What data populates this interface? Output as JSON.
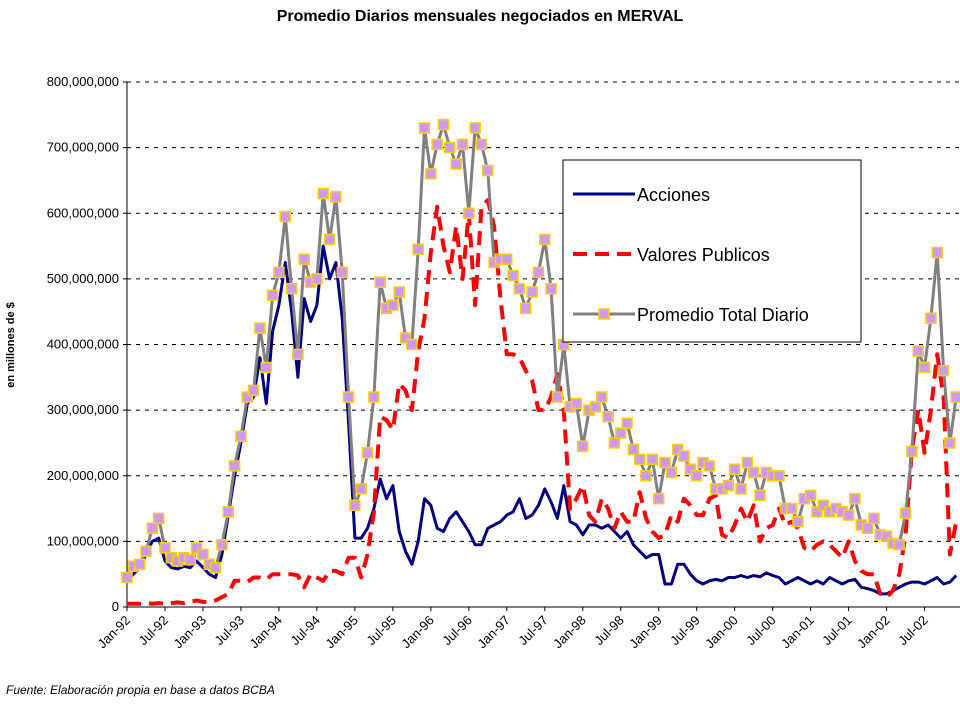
{
  "chart_data": {
    "type": "line",
    "title": "Promedio Diarios mensuales negociados en MERVAL",
    "y_label": "en millones de $",
    "source": "Fuente:  Elaboración propia en base a datos BCBA",
    "categories": [
      "Jan-92",
      null,
      null,
      null,
      null,
      null,
      "Jul-92",
      null,
      null,
      null,
      null,
      null,
      "Jan-93",
      null,
      null,
      null,
      null,
      null,
      "Jul-93",
      null,
      null,
      null,
      null,
      null,
      "Jan-94",
      null,
      null,
      null,
      null,
      null,
      "Jul-94",
      null,
      null,
      null,
      null,
      null,
      "Jan-95",
      null,
      null,
      null,
      null,
      null,
      "Jul-95",
      null,
      null,
      null,
      null,
      null,
      "Jan-96",
      null,
      null,
      null,
      null,
      null,
      "Jul-96",
      null,
      null,
      null,
      null,
      null,
      "Jan-97",
      null,
      null,
      null,
      null,
      null,
      "Jul-97",
      null,
      null,
      null,
      null,
      null,
      "Jan-98",
      null,
      null,
      null,
      null,
      null,
      "Jul-98",
      null,
      null,
      null,
      null,
      null,
      "Jan-99",
      null,
      null,
      null,
      null,
      null,
      "Jul-99",
      null,
      null,
      null,
      null,
      null,
      "Jan-00",
      null,
      null,
      null,
      null,
      null,
      "Jul-00",
      null,
      null,
      null,
      null,
      null,
      "Jan-01",
      null,
      null,
      null,
      null,
      null,
      "Jul-01",
      null,
      null,
      null,
      null,
      null,
      "Jan-02",
      null,
      null,
      null,
      null,
      null,
      "Jul-02",
      null,
      null,
      null,
      null,
      null
    ],
    "series": [
      {
        "name": "Acciones",
        "color": "#000080",
        "dash": false,
        "values": [
          40000000.0,
          50000000.0,
          60000000.0,
          80000000.0,
          100000000.0,
          105000000.0,
          70000000.0,
          60000000.0,
          58000000.0,
          62000000.0,
          60000000.0,
          70000000.0,
          60000000.0,
          50000000.0,
          45000000.0,
          80000000.0,
          140000000.0,
          200000000.0,
          250000000.0,
          310000000.0,
          320000000.0,
          380000000.0,
          310000000.0,
          420000000.0,
          460000000.0,
          525000000.0,
          450000000.0,
          350000000.0,
          470000000.0,
          435000000.0,
          460000000.0,
          550000000.0,
          500000000.0,
          525000000.0,
          440000000.0,
          280000000.0,
          105000000.0,
          105000000.0,
          120000000.0,
          150000000.0,
          195000000.0,
          165000000.0,
          185000000.0,
          115000000.0,
          85000000.0,
          65000000.0,
          100000000.0,
          165000000.0,
          155000000.0,
          120000000.0,
          115000000.0,
          135000000.0,
          145000000.0,
          130000000.0,
          115000000.0,
          95000000.0,
          95000000.0,
          120000000.0,
          125000000.0,
          130000000.0,
          140000000.0,
          145000000.0,
          165000000.0,
          135000000.0,
          140000000.0,
          155000000.0,
          180000000.0,
          160000000.0,
          135000000.0,
          185000000.0,
          130000000.0,
          125000000.0,
          110000000.0,
          125000000.0,
          125000000.0,
          120000000.0,
          125000000.0,
          115000000.0,
          105000000.0,
          115000000.0,
          95000000.0,
          85000000.0,
          75000000.0,
          80000000.0,
          80000000.0,
          35000000.0,
          35000000.0,
          65000000.0,
          65000000.0,
          50000000.0,
          40000000.0,
          35000000.0,
          40000000.0,
          42000000.0,
          40000000.0,
          45000000.0,
          45000000.0,
          48000000.0,
          45000000.0,
          48000000.0,
          46000000.0,
          52000000.0,
          48000000.0,
          45000000.0,
          35000000.0,
          40000000.0,
          45000000.0,
          40000000.0,
          35000000.0,
          40000000.0,
          35000000.0,
          45000000.0,
          40000000.0,
          35000000.0,
          40000000.0,
          42000000.0,
          30000000.0,
          28000000.0,
          25000000.0,
          20000000.0,
          20000000.0,
          25000000.0,
          30000000.0,
          35000000.0,
          38000000.0,
          38000000.0,
          35000000.0,
          40000000.0,
          45000000.0,
          35000000.0,
          38000000.0,
          48000000.0
        ]
      },
      {
        "name": "Valores Publicos",
        "color": "#ff0000",
        "dash": true,
        "values": [
          5000000.0,
          5000000.0,
          5000000.0,
          6000000.0,
          5000000.0,
          6000000.0,
          5000000.0,
          6000000.0,
          7000000.0,
          6000000.0,
          8000000.0,
          10000000.0,
          8000000.0,
          7000000.0,
          10000000.0,
          15000000.0,
          20000000.0,
          40000000.0,
          40000000.0,
          38000000.0,
          45000000.0,
          45000000.0,
          42000000.0,
          50000000.0,
          50000000.0,
          50000000.0,
          50000000.0,
          48000000.0,
          30000000.0,
          50000000.0,
          45000000.0,
          40000000.0,
          55000000.0,
          55000000.0,
          50000000.0,
          75000000.0,
          75000000.0,
          45000000.0,
          80000000.0,
          145000000.0,
          290000000.0,
          285000000.0,
          270000000.0,
          340000000.0,
          330000000.0,
          300000000.0,
          390000000.0,
          440000000.0,
          540000000.0,
          610000000.0,
          550000000.0,
          510000000.0,
          580000000.0,
          500000000.0,
          600000000.0,
          460000000.0,
          610000000.0,
          620000000.0,
          580000000.0,
          470000000.0,
          385000000.0,
          385000000.0,
          380000000.0,
          360000000.0,
          345000000.0,
          300000000.0,
          300000000.0,
          320000000.0,
          355000000.0,
          300000000.0,
          150000000.0,
          165000000.0,
          185000000.0,
          140000000.0,
          130000000.0,
          165000000.0,
          150000000.0,
          120000000.0,
          145000000.0,
          130000000.0,
          130000000.0,
          175000000.0,
          135000000.0,
          115000000.0,
          105000000.0,
          110000000.0,
          140000000.0,
          130000000.0,
          165000000.0,
          155000000.0,
          140000000.0,
          140000000.0,
          165000000.0,
          170000000.0,
          110000000.0,
          105000000.0,
          125000000.0,
          150000000.0,
          130000000.0,
          155000000.0,
          100000000.0,
          120000000.0,
          125000000.0,
          150000000.0,
          125000000.0,
          130000000.0,
          120000000.0,
          90000000.0,
          85000000.0,
          95000000.0,
          100000000.0,
          95000000.0,
          85000000.0,
          75000000.0,
          100000000.0,
          70000000.0,
          55000000.0,
          50000000.0,
          50000000.0,
          20000000.0,
          15000000.0,
          25000000.0,
          50000000.0,
          110000000.0,
          240000000.0,
          300000000.0,
          235000000.0,
          300000000.0,
          385000000.0,
          320000000.0,
          80000000.0,
          130000000.0
        ]
      },
      {
        "name": "Promedio Total Diario",
        "color": "#808080",
        "dash": false,
        "marker": {
          "fill": "#cc99ff",
          "stroke": "#ffcc00"
        },
        "values": [
          45000000.0,
          62000000.0,
          65000000.0,
          85000000.0,
          120000000.0,
          135000000.0,
          90000000.0,
          75000000.0,
          70000000.0,
          75000000.0,
          72000000.0,
          90000000.0,
          80000000.0,
          65000000.0,
          60000000.0,
          95000000.0,
          145000000.0,
          215000000.0,
          260000000.0,
          320000000.0,
          330000000.0,
          425000000.0,
          365000000.0,
          475000000.0,
          510000000.0,
          595000000.0,
          485000000.0,
          385000000.0,
          530000000.0,
          495000000.0,
          500000000.0,
          630000000.0,
          560000000.0,
          625000000.0,
          510000000.0,
          320000000.0,
          155000000.0,
          180000000.0,
          235000000.0,
          320000000.0,
          495000000.0,
          455000000.0,
          460000000.0,
          480000000.0,
          410000000.0,
          400000000.0,
          545000000.0,
          730000000.0,
          660000000.0,
          705000000.0,
          735000000.0,
          700000000.0,
          675000000.0,
          705000000.0,
          600000000.0,
          730000000.0,
          705000000.0,
          665000000.0,
          525000000.0,
          530000000.0,
          530000000.0,
          505000000.0,
          485000000.0,
          455000000.0,
          480000000.0,
          510000000.0,
          560000000.0,
          485000000.0,
          320000000.0,
          400000000.0,
          305000000.0,
          310000000.0,
          245000000.0,
          300000000.0,
          305000000.0,
          320000000.0,
          290000000.0,
          250000000.0,
          265000000.0,
          280000000.0,
          240000000.0,
          225000000.0,
          200000000.0,
          225000000.0,
          165000000.0,
          220000000.0,
          205000000.0,
          240000000.0,
          230000000.0,
          210000000.0,
          200000000.0,
          220000000.0,
          215000000.0,
          180000000.0,
          180000000.0,
          185000000.0,
          210000000.0,
          180000000.0,
          220000000.0,
          205000000.0,
          170000000.0,
          205000000.0,
          200000000.0,
          200000000.0,
          150000000.0,
          150000000.0,
          130000000.0,
          165000000.0,
          170000000.0,
          145000000.0,
          155000000.0,
          145000000.0,
          150000000.0,
          145000000.0,
          140000000.0,
          165000000.0,
          125000000.0,
          120000000.0,
          135000000.0,
          110000000.0,
          108000000.0,
          97000000.0,
          95000000.0,
          143000000.0,
          237000000.0,
          390000000.0,
          365000000.0,
          440000000.0,
          540000000.0,
          360000000.0,
          250000000.0,
          320000000.0
        ]
      }
    ],
    "ylim": [
      0,
      800000000
    ],
    "yticks": [
      0,
      {
        "value": 100000000,
        "label": "100,000,000"
      },
      {
        "value": 200000000,
        "label": "200,000,000"
      },
      {
        "value": 300000000,
        "label": "300,000,000"
      },
      {
        "value": 400000000,
        "label": "400,000,000"
      },
      {
        "value": 500000000,
        "label": "500,000,000"
      },
      {
        "value": 600000000,
        "label": "600,000,000"
      },
      {
        "value": 700000000,
        "label": "700,000,000"
      },
      {
        "value": 800000000,
        "label": "800,000,000"
      }
    ],
    "grid": true,
    "legend": "right"
  }
}
